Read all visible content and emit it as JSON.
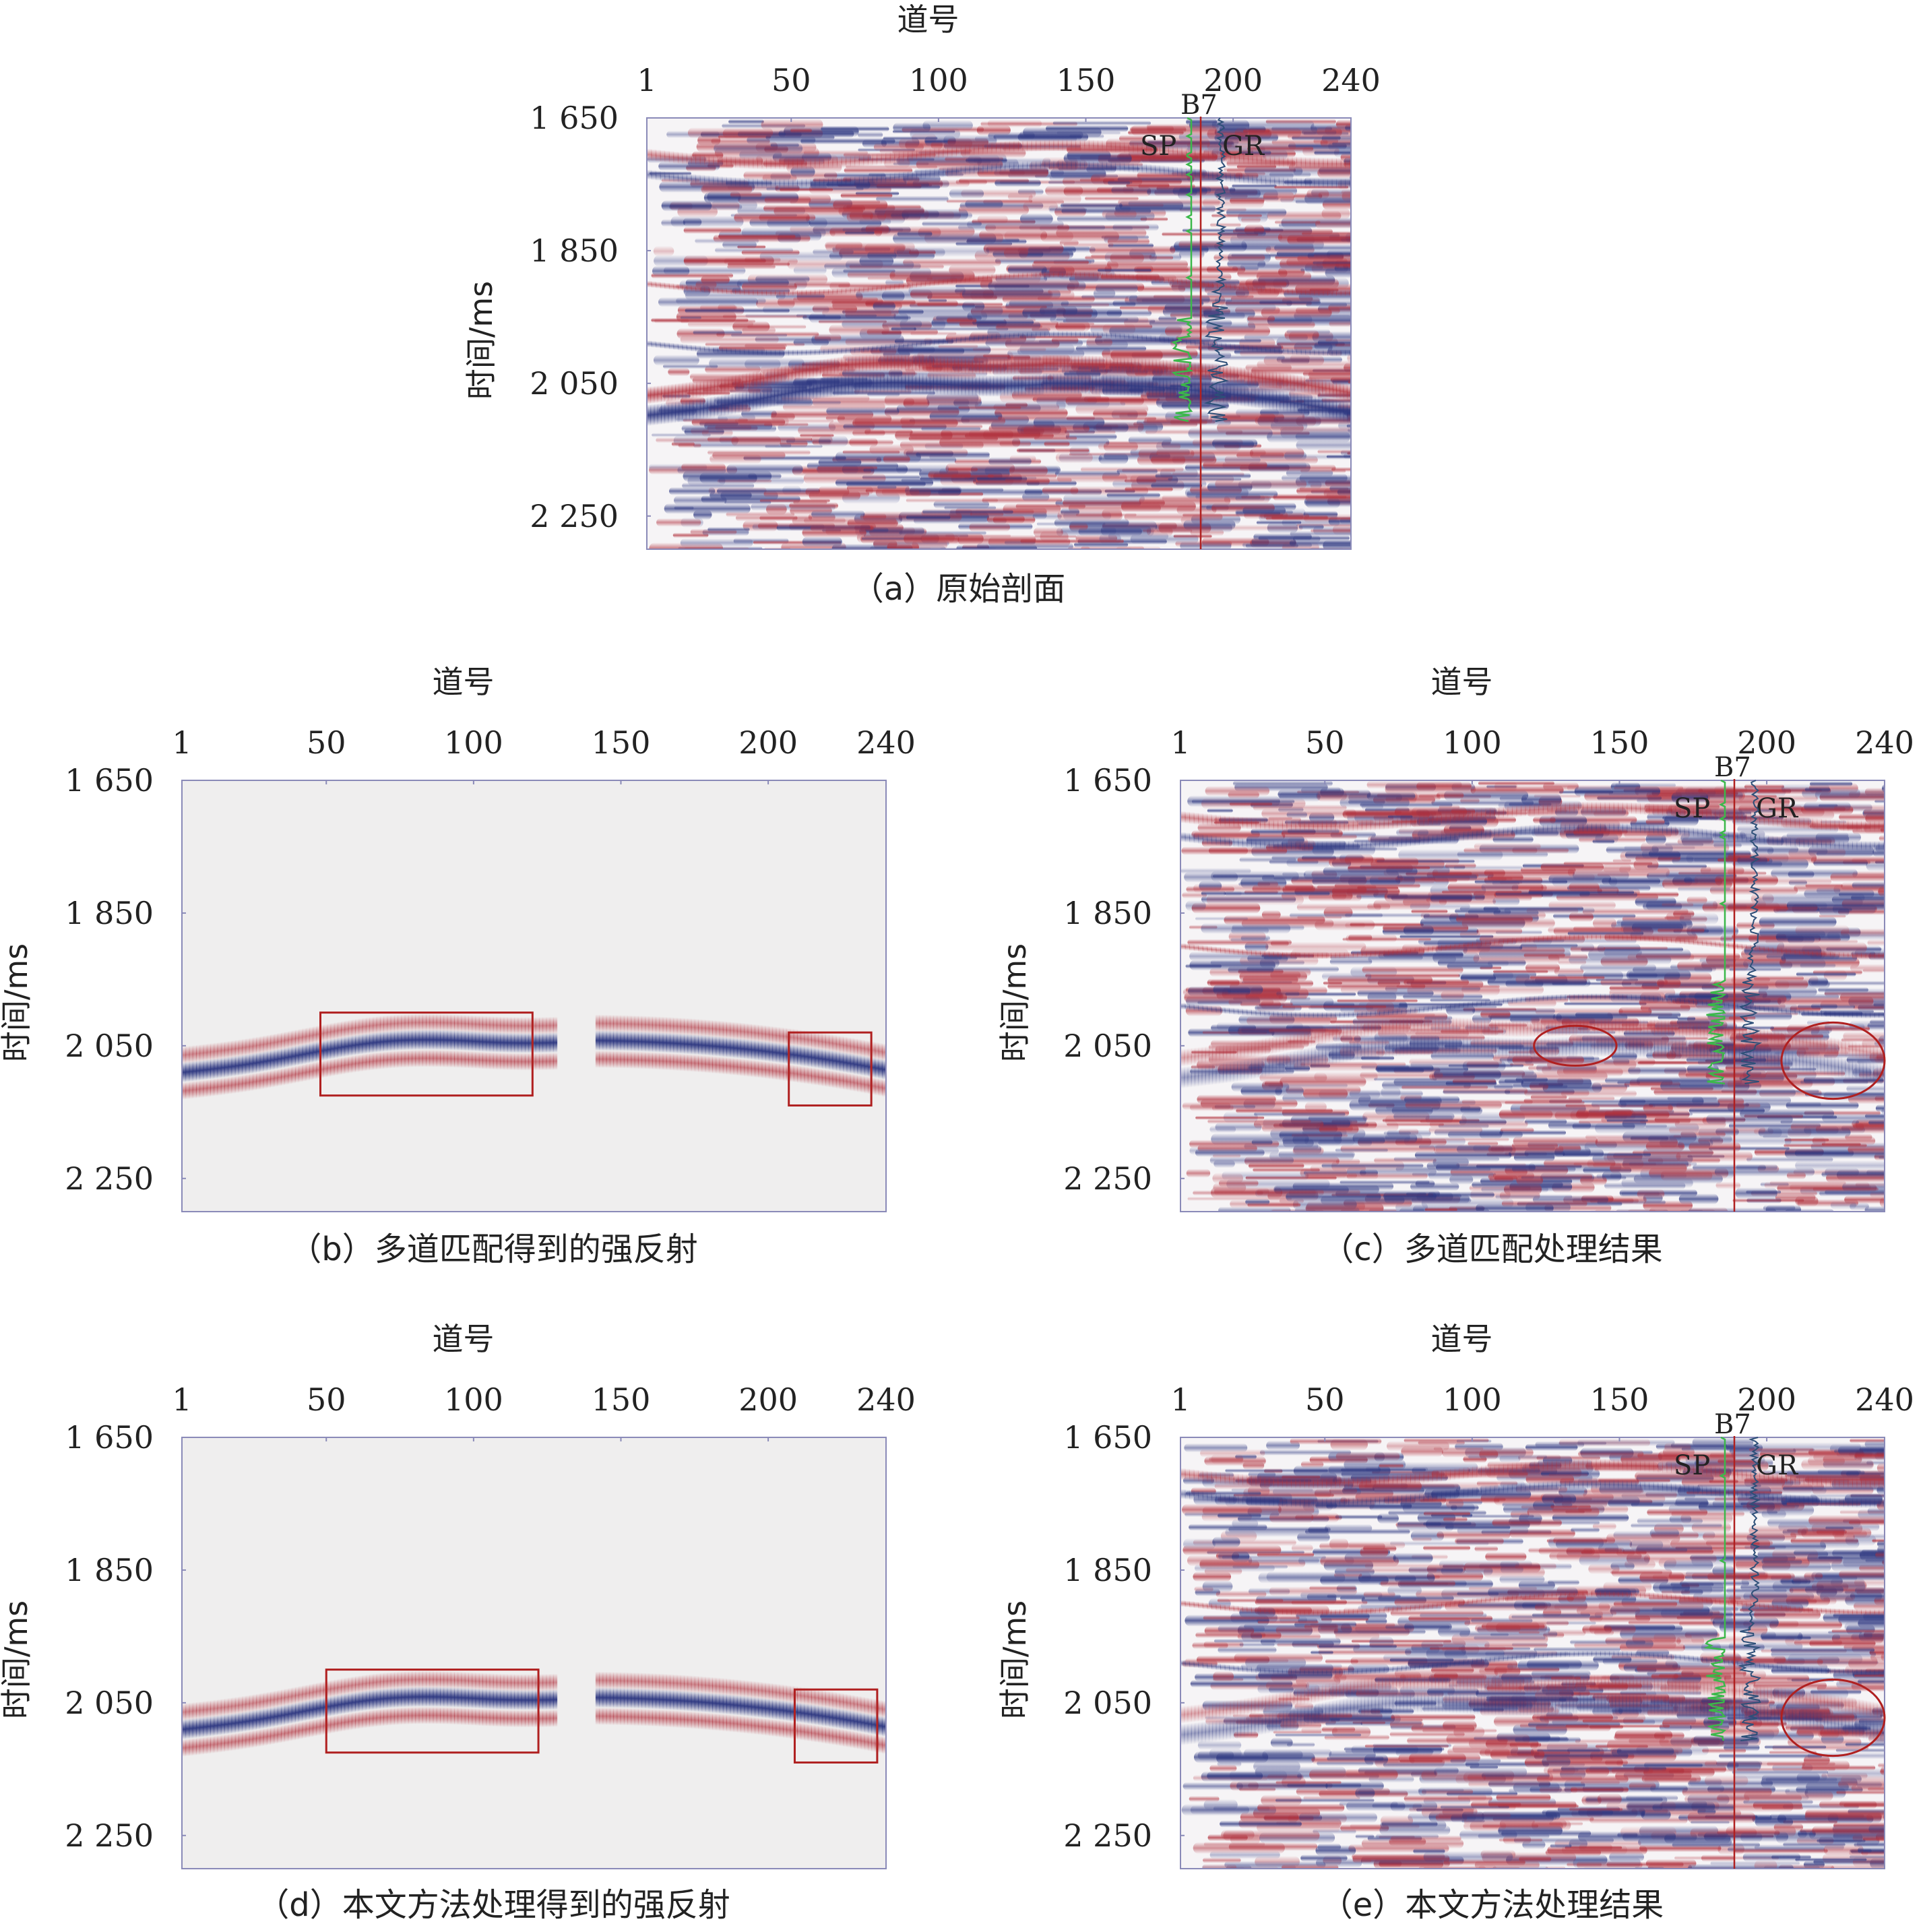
{
  "figure": {
    "colors": {
      "positive": "#b0303c",
      "negative": "#2c3680",
      "frame": "#8a8ab8",
      "annotation": "#b02020",
      "sp_curve": "#3bb84a",
      "gr_curve": "#2d4f78",
      "well_line": "#b02020"
    },
    "x_axis_title": "道号",
    "y_axis_title": "时间/ms",
    "x_ticks": [
      "1",
      "50",
      "100",
      "150",
      "200",
      "240"
    ],
    "y_ticks": [
      "1 650",
      "1 850",
      "2 050",
      "2 250"
    ],
    "well": {
      "name": "B7",
      "sp_label": "SP",
      "gr_label": "GR"
    }
  },
  "chart_data": [
    {
      "id": "a",
      "type": "heatmap",
      "variant": "seismic_section",
      "caption": "（a）原始剖面",
      "xlabel": "道号",
      "ylabel": "时间/ms",
      "xlim": [
        1,
        240
      ],
      "ylim": [
        1650,
        2300
      ],
      "xticks": [
        1,
        50,
        100,
        150,
        200,
        240
      ],
      "yticks": [
        1650,
        1850,
        2050,
        2250
      ],
      "well": {
        "name": "B7",
        "trace": 189,
        "sp_label": "SP",
        "gr_label": "GR",
        "log_interval": [
          1650,
          2110
        ]
      },
      "dominant_reflector": "strong continuous trough near 2 050–2 110 ms"
    },
    {
      "id": "b",
      "type": "heatmap",
      "variant": "strong_reflection",
      "caption": "（b）多道匹配得到的强反射",
      "xlabel": "道号",
      "ylabel": "时间/ms",
      "xlim": [
        1,
        240
      ],
      "ylim": [
        1650,
        2300
      ],
      "xticks": [
        1,
        50,
        100,
        150,
        200,
        240
      ],
      "yticks": [
        1650,
        1850,
        2050,
        2250
      ],
      "annotations": [
        {
          "shape": "rect",
          "x": [
            48,
            120
          ],
          "y": [
            2000,
            2125
          ]
        },
        {
          "shape": "rect",
          "x": [
            207,
            235
          ],
          "y": [
            2030,
            2140
          ]
        }
      ]
    },
    {
      "id": "c",
      "type": "heatmap",
      "variant": "seismic_section",
      "caption": "（c）多道匹配处理结果",
      "xlabel": "道号",
      "ylabel": "时间/ms",
      "xlim": [
        1,
        240
      ],
      "ylim": [
        1650,
        2300
      ],
      "xticks": [
        1,
        50,
        100,
        150,
        200,
        240
      ],
      "yticks": [
        1650,
        1850,
        2050,
        2250
      ],
      "well": {
        "name": "B7",
        "trace": 189,
        "sp_label": "SP",
        "gr_label": "GR",
        "log_interval": [
          1650,
          2110
        ]
      },
      "annotations": [
        {
          "shape": "ellipse",
          "x": [
            121,
            149
          ],
          "y": [
            2020,
            2080
          ]
        },
        {
          "shape": "ellipse",
          "x": [
            205,
            240
          ],
          "y": [
            2015,
            2130
          ]
        }
      ]
    },
    {
      "id": "d",
      "type": "heatmap",
      "variant": "strong_reflection",
      "caption": "（d）本文方法处理得到的强反射",
      "xlabel": "道号",
      "ylabel": "时间/ms",
      "xlim": [
        1,
        240
      ],
      "ylim": [
        1650,
        2300
      ],
      "xticks": [
        1,
        50,
        100,
        150,
        200,
        240
      ],
      "yticks": [
        1650,
        1850,
        2050,
        2250
      ],
      "annotations": [
        {
          "shape": "rect",
          "x": [
            50,
            122
          ],
          "y": [
            2000,
            2125
          ]
        },
        {
          "shape": "rect",
          "x": [
            209,
            237
          ],
          "y": [
            2030,
            2140
          ]
        }
      ]
    },
    {
      "id": "e",
      "type": "heatmap",
      "variant": "seismic_section",
      "caption": "（e）本文方法处理结果",
      "xlabel": "道号",
      "ylabel": "时间/ms",
      "xlim": [
        1,
        240
      ],
      "ylim": [
        1650,
        2300
      ],
      "xticks": [
        1,
        50,
        100,
        150,
        200,
        240
      ],
      "yticks": [
        1650,
        1850,
        2050,
        2250
      ],
      "well": {
        "name": "B7",
        "trace": 189,
        "sp_label": "SP",
        "gr_label": "GR",
        "log_interval": [
          1650,
          2110
        ]
      },
      "annotations": [
        {
          "shape": "ellipse",
          "x": [
            205,
            240
          ],
          "y": [
            2015,
            2130
          ]
        }
      ]
    }
  ]
}
